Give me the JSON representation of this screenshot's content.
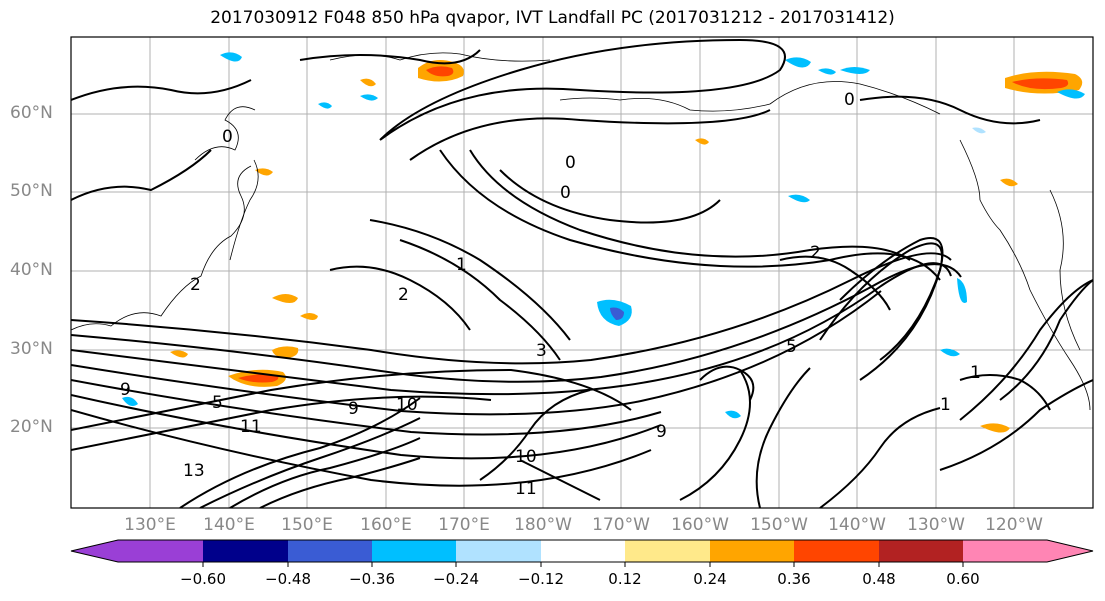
{
  "title": "2017030912 F048 850 hPa qvapor, IVT Landfall PC (2017031212 - 2017031412)",
  "lat_labels": [
    "60°N",
    "50°N",
    "40°N",
    "30°N",
    "20°N"
  ],
  "lon_labels": [
    "130°E",
    "140°E",
    "150°E",
    "160°E",
    "170°E",
    "180°W",
    "170°W",
    "160°W",
    "150°W",
    "140°W",
    "130°W",
    "120°W"
  ],
  "colorbar": {
    "ticks": [
      "−0.60",
      "−0.48",
      "−0.36",
      "−0.24",
      "−0.12",
      "0.12",
      "0.24",
      "0.36",
      "0.48",
      "0.60"
    ],
    "colors": [
      "#9a3fd6",
      "#00008b",
      "#3a5cd4",
      "#00bfff",
      "#b0e2ff",
      "#ffffff",
      "#ffe98a",
      "#ffa500",
      "#ff4500",
      "#b22222",
      "#ff85b4"
    ]
  },
  "contour_labels": [
    "0",
    "1",
    "2",
    "3",
    "5",
    "9",
    "10",
    "11",
    "13"
  ]
}
